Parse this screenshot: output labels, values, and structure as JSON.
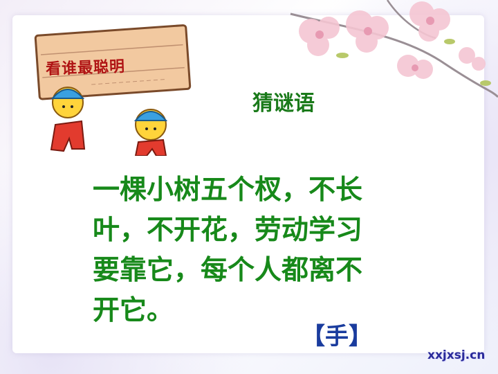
{
  "slide": {
    "sign_text": "看谁最聪明",
    "subtitle": "猜谜语",
    "riddle_lines": [
      "一棵小树五个杈，不长",
      "叶，不开花，劳动学习",
      "要靠它，每个人都离不",
      "开它。"
    ],
    "answer": "【手】",
    "watermark": "xxjxsj.cn"
  },
  "colors": {
    "sign_text": "#b01515",
    "riddle_text": "#17891a",
    "answer_text": "#1a3c9e"
  },
  "icons": {
    "decoration": "cherry-blossom-branch",
    "mascot": "workers-carrying-sign"
  }
}
